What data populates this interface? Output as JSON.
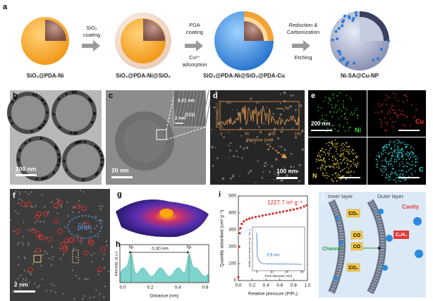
{
  "panel_labels": [
    "a",
    "b",
    "c",
    "d",
    "e",
    "f",
    "g",
    "h",
    "i",
    "j"
  ],
  "a": {
    "stages": [
      "SiO₂@PDA-Ni",
      "SiO₂@PDA-Ni@SiO₂",
      "SiO₂@PDA-Ni@SiO₂@PDA-Cu",
      "Ni-SA@Cu-NP"
    ],
    "steps": [
      {
        "above": [
          "SiO₂",
          "coating"
        ],
        "below": []
      },
      {
        "above": [
          "PDA",
          "coating"
        ],
        "below": [
          "Cu²⁺",
          "adsorption"
        ]
      },
      {
        "above": [
          "Reduction &",
          "Carbonization"
        ],
        "below": [
          "Etching"
        ]
      }
    ]
  },
  "b": {
    "scale_bar": "200 nm"
  },
  "c": {
    "scale_bar": "20 nm",
    "inset_scale_bar": "2 nm",
    "lattice_spacing": "0.21 nm",
    "plane": "(111)"
  },
  "d": {
    "scale_bar": "100 nm",
    "inset_legend": "Ni",
    "inset_ylabel": "Intensity (a.u.)",
    "inset_xlabel": "Distance (nm)",
    "inset_xticks": [
      0,
      50,
      100,
      150
    ]
  },
  "e": {
    "scale_bar": "200 nm",
    "maps": [
      "Ni",
      "Cu",
      "N",
      "C"
    ]
  },
  "f": {
    "scale_bar": "2 nm",
    "pore_label": "pore"
  },
  "h": {
    "peaks": [
      "Ni",
      "Ni"
    ],
    "spacing": "0.30 nm",
    "ylabel": "Intensity (a.u.)",
    "xlabel": "Distance (nm)",
    "xticks": [
      "0.0",
      "0.2",
      "0.4",
      "0.6"
    ]
  },
  "i": {
    "chart_data": {
      "type": "scatter",
      "xlabel": "Relative pressure (P/P₀)",
      "ylabel": "Quantity adsorbed (cm³ g⁻¹)",
      "annotation": "1227.7 m² g⁻¹",
      "color": "#d62728",
      "x": [
        0.0,
        0.01,
        0.02,
        0.03,
        0.05,
        0.08,
        0.12,
        0.16,
        0.2,
        0.25,
        0.3,
        0.35,
        0.4,
        0.45,
        0.5,
        0.55,
        0.6,
        0.65,
        0.7,
        0.75,
        0.8,
        0.85,
        0.9,
        0.95,
        0.99
      ],
      "values": [
        20,
        200,
        280,
        310,
        335,
        350,
        360,
        366,
        371,
        376,
        380,
        384,
        388,
        392,
        396,
        400,
        404,
        408,
        412,
        416,
        420,
        425,
        430,
        438,
        445
      ],
      "xlim": [
        0,
        1.0
      ],
      "ylim": [
        0,
        500
      ],
      "xticks": [
        {
          "value": 0,
          "label": "0.0"
        },
        {
          "value": 0.2,
          "label": "0.2"
        },
        {
          "value": 0.4,
          "label": "0.4"
        },
        {
          "value": 0.6,
          "label": "0.6"
        },
        {
          "value": 0.8,
          "label": "0.8"
        },
        {
          "value": 1.0,
          "label": "1.0"
        }
      ],
      "yticks": [
        0,
        100,
        200,
        300,
        400,
        500
      ]
    },
    "inset": {
      "annotation": "3.9 nm",
      "xlabel": "Pore diameter (nm)",
      "ylabel": "dV/dD pore volume (cm³ g⁻¹ nm⁻¹)",
      "xticks": [
        0,
        10,
        20,
        30
      ]
    }
  },
  "j": {
    "inner": "Inner layer",
    "outer": "Outer layer",
    "cavity": "Cavity",
    "channel": "Channel",
    "molecules": [
      "CO₂",
      "CO",
      "CO",
      "C₂H₄",
      "CO₂"
    ]
  }
}
